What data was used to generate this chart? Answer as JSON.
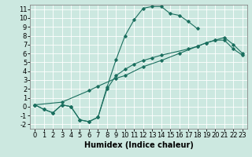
{
  "xlabel": "Humidex (Indice chaleur)",
  "xlim": [
    -0.5,
    23.5
  ],
  "ylim": [
    -2.5,
    11.5
  ],
  "xticks": [
    0,
    1,
    2,
    3,
    4,
    5,
    6,
    7,
    8,
    9,
    10,
    11,
    12,
    13,
    14,
    15,
    16,
    17,
    18,
    19,
    20,
    21,
    22,
    23
  ],
  "yticks": [
    -2,
    -1,
    0,
    1,
    2,
    3,
    4,
    5,
    6,
    7,
    8,
    9,
    10,
    11
  ],
  "bg_color": "#cce8e0",
  "grid_color": "#ffffff",
  "line_color": "#1a6e5e",
  "lineA_x": [
    0,
    1,
    2,
    3,
    4,
    5,
    6,
    7,
    8,
    9,
    10,
    11,
    12,
    13,
    14,
    15,
    16,
    17,
    18
  ],
  "lineA_y": [
    0.2,
    -0.3,
    -0.7,
    0.2,
    0.0,
    -1.5,
    -1.7,
    -1.2,
    2.2,
    5.3,
    8.0,
    9.8,
    11.1,
    11.3,
    11.3,
    10.5,
    10.3,
    9.6,
    8.8
  ],
  "lineB_x": [
    0,
    1,
    2,
    3,
    4,
    5,
    6,
    7,
    8,
    9,
    10,
    11,
    12,
    13,
    14,
    17,
    18,
    19,
    20,
    21,
    22,
    23
  ],
  "lineB_y": [
    0.2,
    -0.3,
    -0.7,
    0.2,
    0.0,
    -1.5,
    -1.7,
    -1.2,
    2.0,
    3.5,
    4.2,
    4.8,
    5.2,
    5.5,
    5.8,
    6.5,
    6.8,
    7.2,
    7.5,
    7.8,
    7.0,
    6.0
  ],
  "lineC_x": [
    0,
    3,
    6,
    7,
    9,
    10,
    12,
    14,
    16,
    18,
    19,
    20,
    21,
    22,
    23
  ],
  "lineC_y": [
    0.2,
    0.5,
    1.8,
    2.3,
    3.2,
    3.5,
    4.5,
    5.2,
    6.0,
    6.8,
    7.2,
    7.5,
    7.5,
    6.5,
    5.8
  ],
  "font_size_tick": 6,
  "font_size_label": 7
}
